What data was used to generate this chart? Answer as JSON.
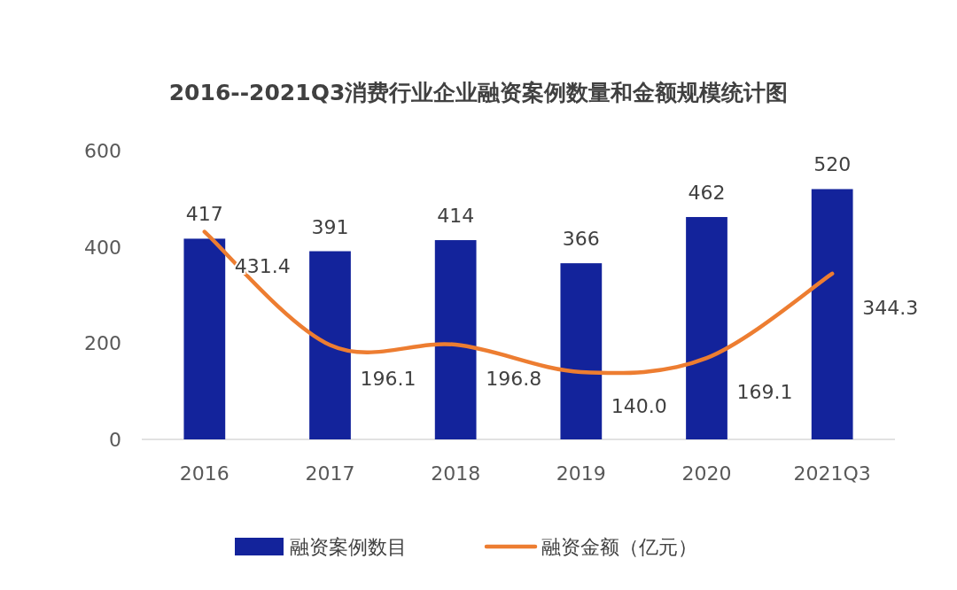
{
  "chart_data": {
    "type": "bar",
    "title": "2016--2021Q3消费行业企业融资案例数量和金额规模统计图",
    "categories": [
      "2016",
      "2017",
      "2018",
      "2019",
      "2020",
      "2021Q3"
    ],
    "ylim": [
      0,
      600
    ],
    "yticks": [
      0,
      200,
      400,
      600
    ],
    "series": [
      {
        "name": "融资案例数目",
        "color": "#13239b",
        "values": [
          417,
          391,
          414,
          366,
          462,
          520
        ]
      },
      {
        "name": "融资金额（亿元）",
        "type": "line",
        "color": "#ed7d31",
        "values": [
          431.4,
          196.1,
          196.8,
          140.0,
          169.1,
          344.3
        ],
        "value_labels": [
          "431.4",
          "196.1",
          "196.8",
          "140.0",
          "169.1",
          "344.3"
        ]
      }
    ],
    "data_labels": true,
    "legend": "bottom"
  }
}
